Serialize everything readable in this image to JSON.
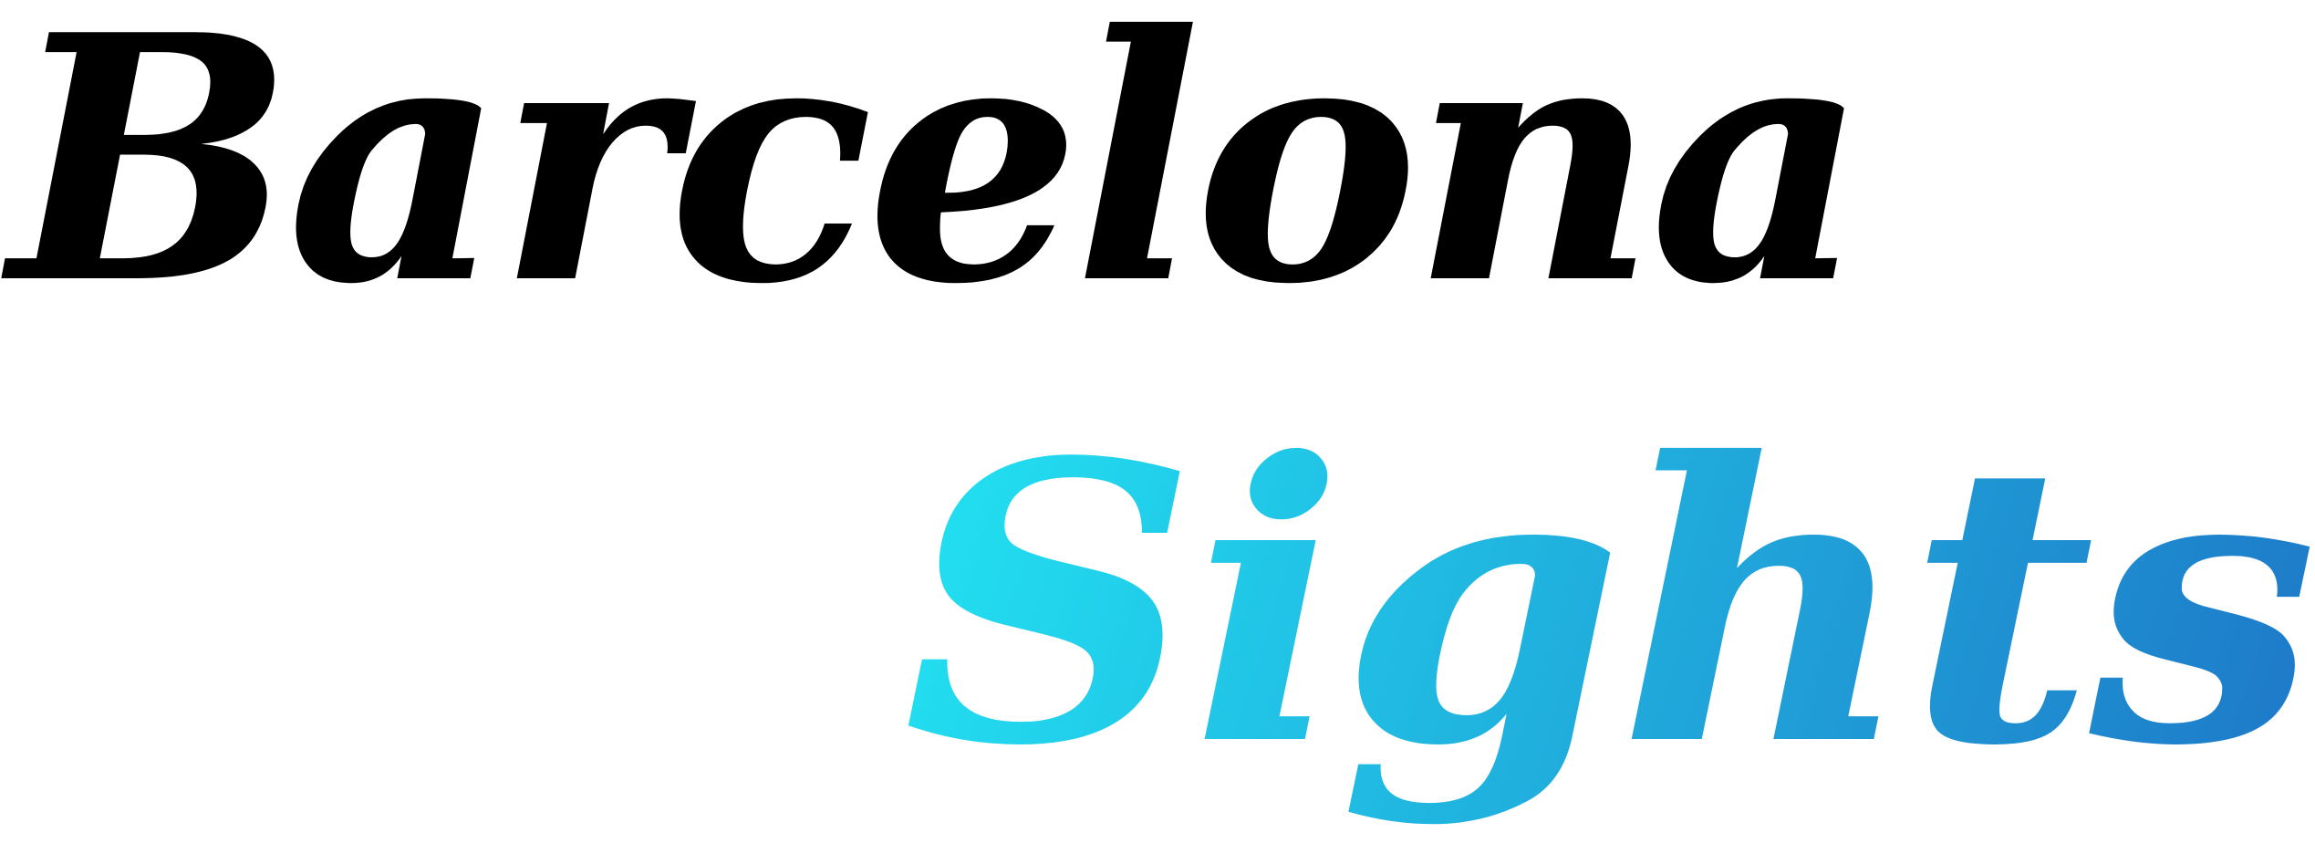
{
  "logo": {
    "line1": "Barcelona",
    "line2": "Sights"
  },
  "colors": {
    "line1": "#000000",
    "gradient_start": "#22e3f2",
    "gradient_end": "#1e78c8"
  }
}
